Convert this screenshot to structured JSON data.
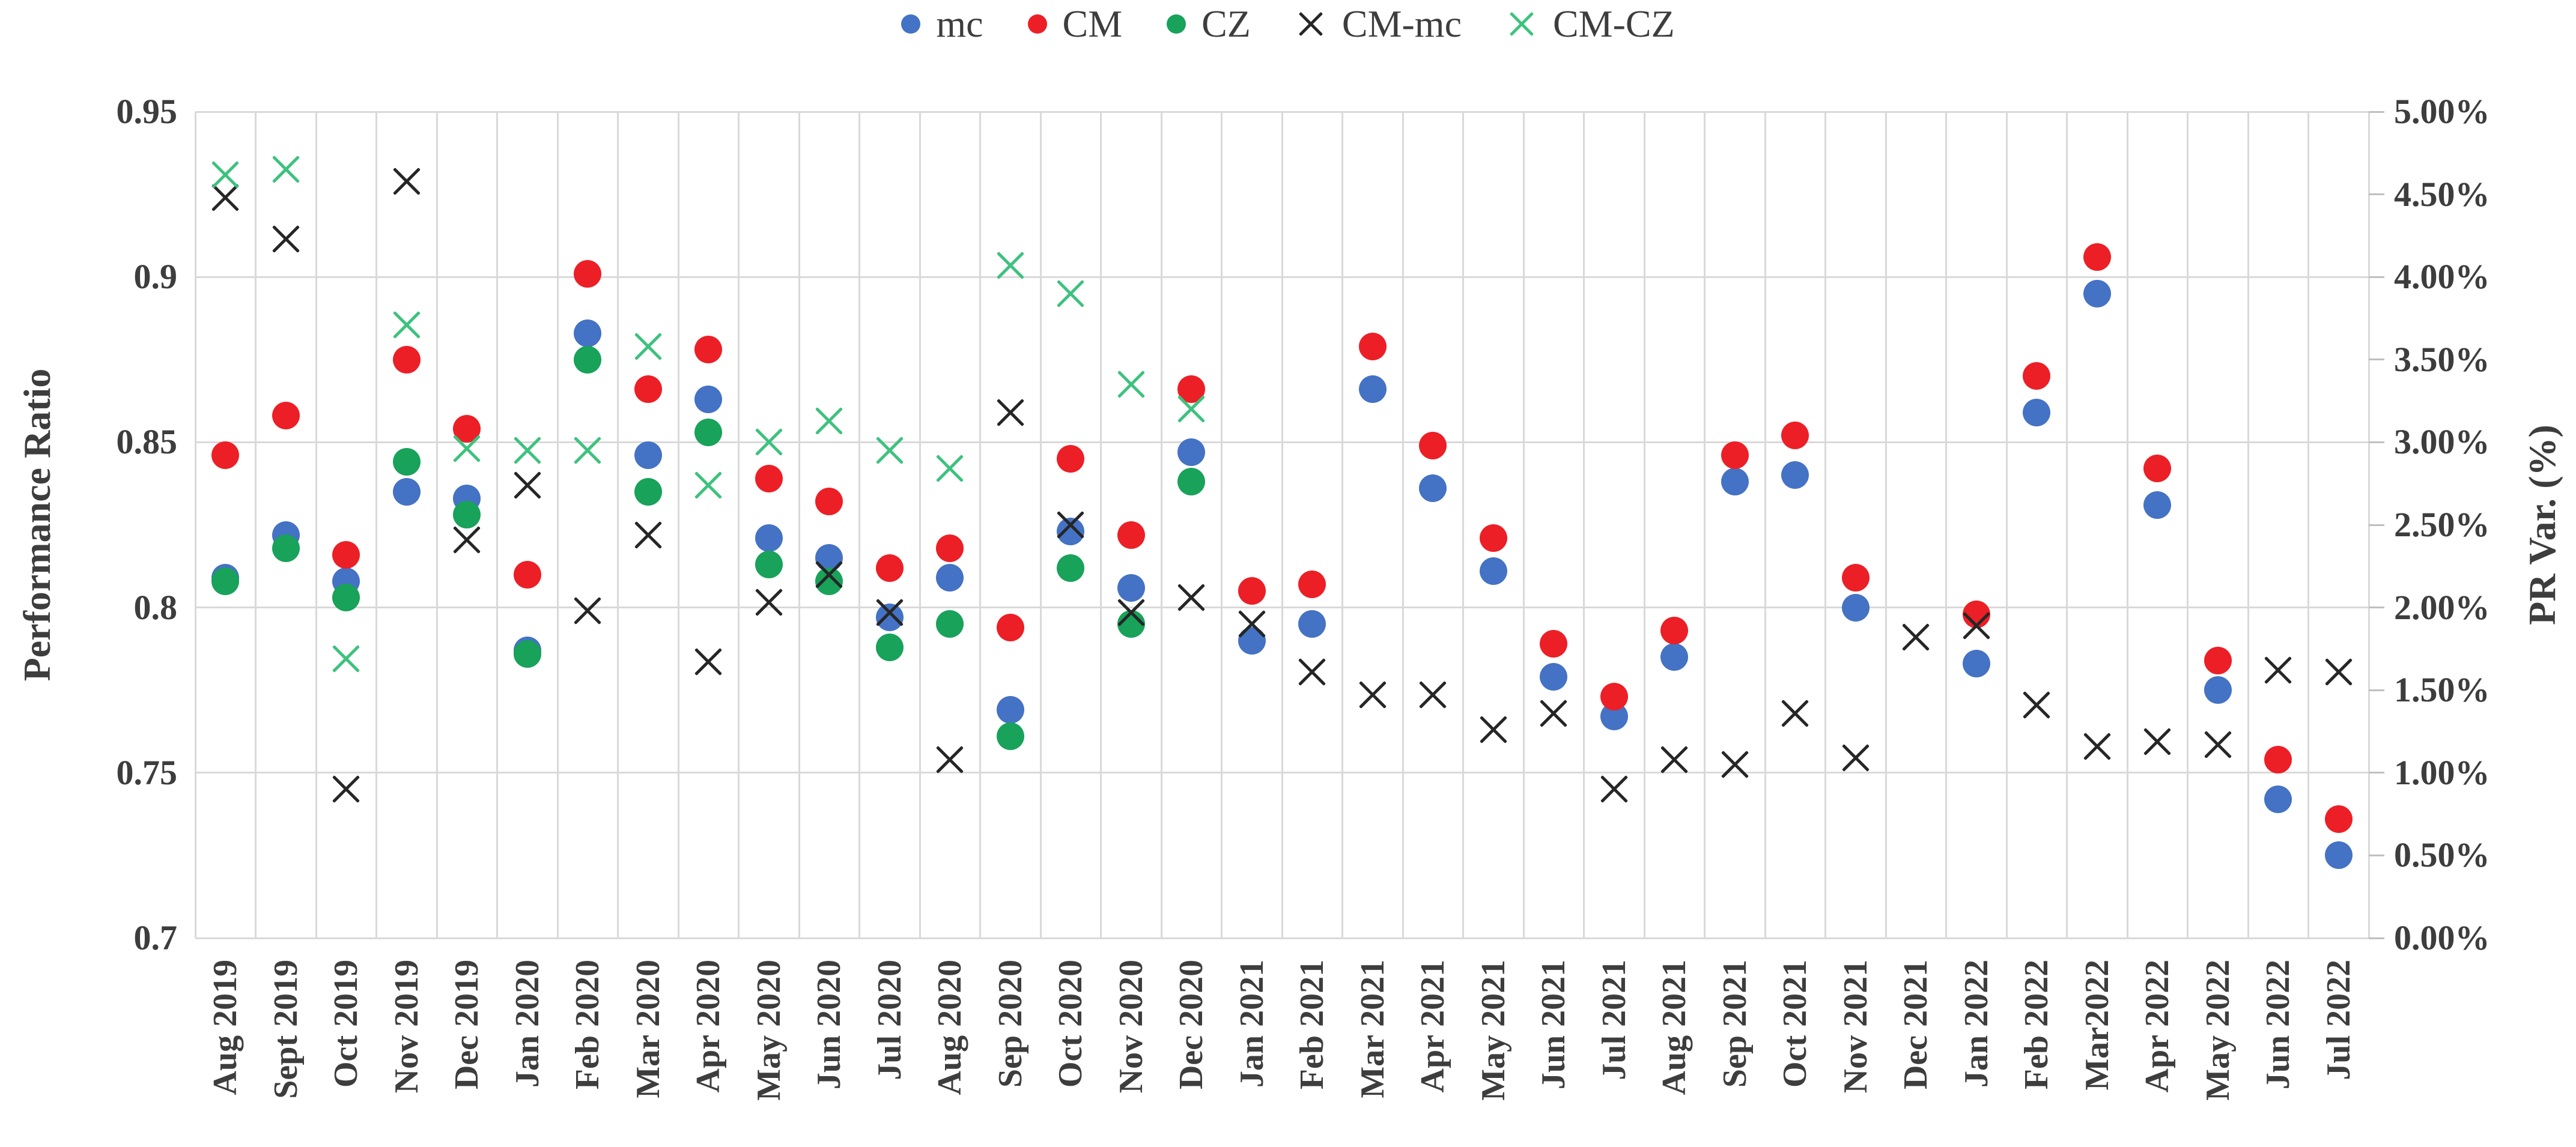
{
  "chart_data": {
    "type": "scatter",
    "title": "",
    "categories": [
      "Aug 2019",
      "Sept 2019",
      "Oct 2019",
      "Nov 2019",
      "Dec 2019",
      "Jan 2020",
      "Feb 2020",
      "Mar 2020",
      "Apr 2020",
      "May 2020",
      "Jun 2020",
      "Jul 2020",
      "Aug 2020",
      "Sep 2020",
      "Oct 2020",
      "Nov 2020",
      "Dec 2020",
      "Jan 2021",
      "Feb 2021",
      "Mar 2021",
      "Apr 2021",
      "May 2021",
      "Jun 2021",
      "Jul 2021",
      "Aug 2021",
      "Sep 2021",
      "Oct 2021",
      "Nov 2021",
      "Dec 2021",
      "Jan 2022",
      "Feb 2022",
      "Mar2022",
      "Apr 2022",
      "May 2022",
      "Jun 2022",
      "Jul 2022"
    ],
    "y_left": {
      "label": "Performance Ratio",
      "min": 0.7,
      "max": 0.95,
      "tick_step": 0.05,
      "ticks": [
        "0.95",
        "0.9",
        "0.85",
        "0.8",
        "0.75",
        "0.7"
      ]
    },
    "y_right": {
      "label": "PR Var. (%)",
      "min": 0.0,
      "max": 5.0,
      "tick_step": 0.5,
      "ticks": [
        "5.00%",
        "4.50%",
        "4.00%",
        "3.50%",
        "3.00%",
        "2.50%",
        "2.00%",
        "1.50%",
        "1.00%",
        "0.50%",
        "0.00%"
      ]
    },
    "grid": true,
    "legend_position": "top",
    "series": [
      {
        "name": "mc",
        "axis": "left",
        "marker": "circle",
        "color": "#4472C4",
        "values": [
          0.809,
          0.822,
          0.808,
          0.835,
          0.833,
          0.787,
          0.883,
          0.846,
          0.863,
          0.821,
          0.815,
          0.797,
          0.809,
          0.769,
          0.823,
          0.806,
          0.847,
          0.79,
          0.795,
          0.866,
          0.836,
          0.811,
          0.779,
          0.767,
          0.785,
          0.838,
          0.84,
          0.8,
          null,
          0.783,
          0.859,
          0.895,
          0.831,
          0.775,
          0.742,
          0.725
        ]
      },
      {
        "name": "CM",
        "axis": "left",
        "marker": "circle",
        "color": "#EC1F26",
        "values": [
          0.846,
          0.858,
          0.816,
          0.875,
          0.854,
          0.81,
          0.901,
          0.866,
          0.878,
          0.839,
          0.832,
          0.812,
          0.818,
          0.794,
          0.845,
          0.822,
          0.866,
          0.805,
          0.807,
          0.879,
          0.849,
          0.821,
          0.789,
          0.773,
          0.793,
          0.846,
          0.852,
          0.809,
          null,
          0.798,
          0.87,
          0.906,
          0.842,
          0.784,
          0.754,
          0.736
        ]
      },
      {
        "name": "CZ",
        "axis": "left",
        "marker": "circle",
        "color": "#18A25A",
        "values": [
          0.808,
          0.818,
          0.803,
          0.844,
          0.828,
          0.786,
          0.875,
          0.835,
          0.853,
          0.813,
          0.808,
          0.788,
          0.795,
          0.761,
          0.812,
          0.795,
          0.838,
          null,
          null,
          null,
          null,
          null,
          null,
          null,
          null,
          null,
          null,
          null,
          null,
          null,
          null,
          null,
          null,
          null,
          null,
          null
        ]
      },
      {
        "name": "CM-mc",
        "axis": "right",
        "marker": "x",
        "color": "#262626",
        "values": [
          4.48,
          4.23,
          0.9,
          4.58,
          2.41,
          2.74,
          1.98,
          2.44,
          1.67,
          2.03,
          2.2,
          1.97,
          1.08,
          3.18,
          2.5,
          1.97,
          2.06,
          1.9,
          1.61,
          1.47,
          1.47,
          1.26,
          1.36,
          0.9,
          1.08,
          1.05,
          1.36,
          1.09,
          1.82,
          1.89,
          1.41,
          1.16,
          1.19,
          1.17,
          1.62,
          1.61
        ]
      },
      {
        "name": "CM-CZ",
        "axis": "right",
        "marker": "x",
        "color": "#3DC27E",
        "values": [
          4.62,
          4.65,
          1.69,
          3.71,
          2.96,
          2.95,
          2.95,
          3.58,
          2.74,
          3.0,
          3.13,
          2.95,
          2.84,
          4.07,
          3.9,
          3.35,
          3.2,
          null,
          null,
          null,
          null,
          null,
          null,
          null,
          null,
          null,
          null,
          null,
          null,
          null,
          null,
          null,
          null,
          null,
          null,
          null
        ]
      }
    ],
    "colors": {
      "grid": "#d9d9d9",
      "text": "#3d3d3d",
      "tick_mark": "#bfbfbf"
    }
  }
}
